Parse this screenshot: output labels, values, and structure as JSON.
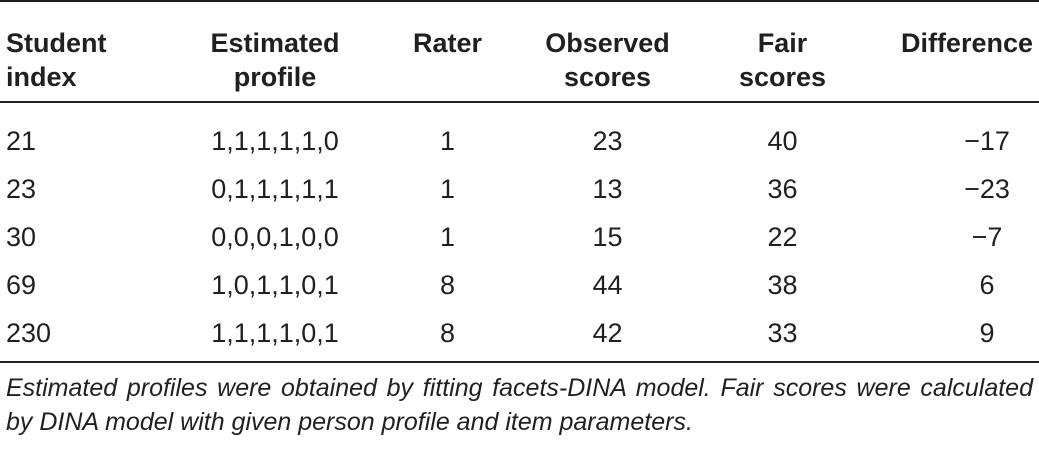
{
  "table": {
    "headers": [
      [
        "Student",
        "index"
      ],
      [
        "Estimated",
        "profile"
      ],
      [
        "Rater",
        ""
      ],
      [
        "Observed",
        "scores"
      ],
      [
        "Fair",
        "scores"
      ],
      [
        "Difference",
        ""
      ]
    ],
    "rows": [
      [
        "21",
        "1,1,1,1,1,0",
        "1",
        "23",
        "40",
        "−17"
      ],
      [
        "23",
        "0,1,1,1,1,1",
        "1",
        "13",
        "36",
        "−23"
      ],
      [
        "30",
        "0,0,0,1,0,0",
        "1",
        "15",
        "22",
        "−7"
      ],
      [
        "69",
        "1,0,1,1,0,1",
        "8",
        "44",
        "38",
        "6"
      ],
      [
        "230",
        "1,1,1,1,0,1",
        "8",
        "42",
        "33",
        "9"
      ]
    ]
  },
  "footnote": "Estimated profiles were obtained by fitting facets-DINA model. Fair scores were calculated by DINA model with given person profile and item parameters."
}
